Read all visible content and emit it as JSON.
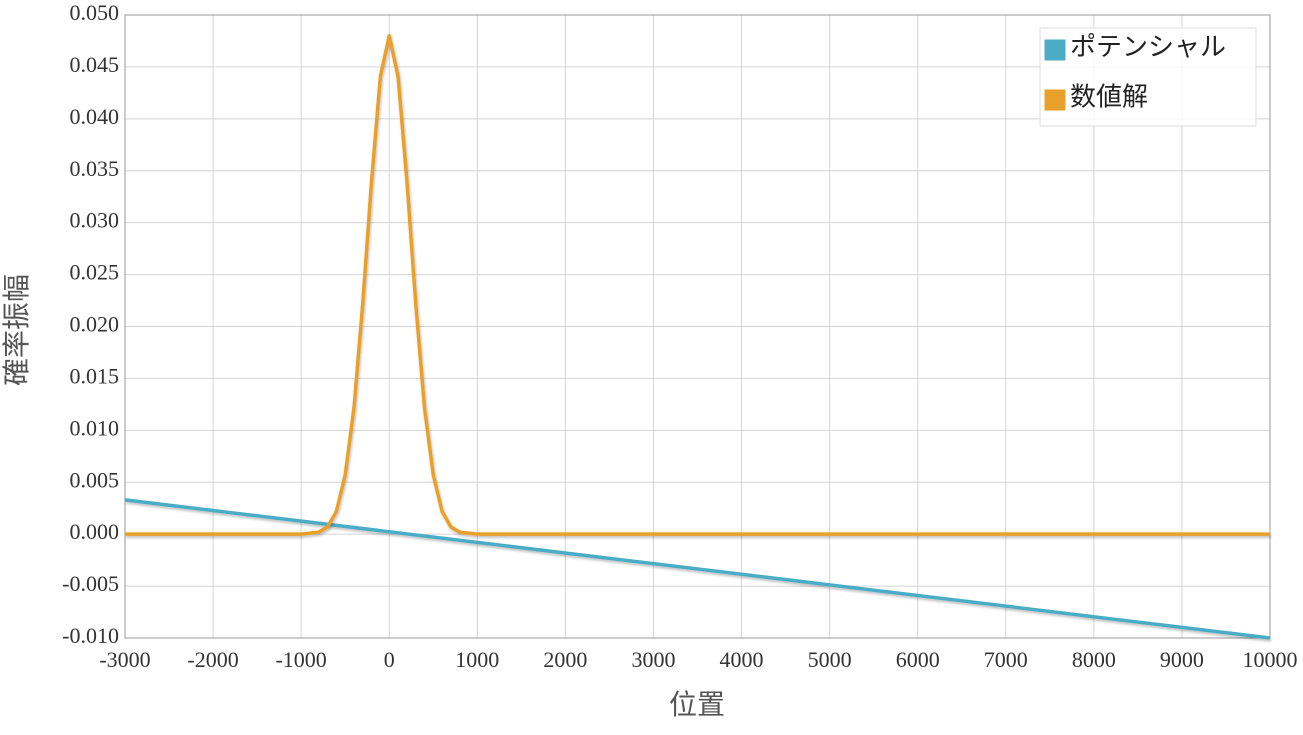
{
  "chart_data": {
    "type": "line",
    "x_label": "位置",
    "y_label": "確率振幅",
    "xlim": [
      -3000,
      10000
    ],
    "xticks": [
      -3000,
      -2000,
      -1000,
      0,
      1000,
      2000,
      3000,
      4000,
      5000,
      6000,
      7000,
      8000,
      9000,
      10000
    ],
    "ylim": [
      -0.01,
      0.05
    ],
    "yticks": [
      {
        "value": -0.01,
        "label": "-0.010"
      },
      {
        "value": -0.005,
        "label": "-0.005"
      },
      {
        "value": 0,
        "label": "0.000"
      },
      {
        "value": 0.005,
        "label": "0.005"
      },
      {
        "value": 0.01,
        "label": "0.010"
      },
      {
        "value": 0.015,
        "label": "0.015"
      },
      {
        "value": 0.02,
        "label": "0.020"
      },
      {
        "value": 0.025,
        "label": "0.025"
      },
      {
        "value": 0.03,
        "label": "0.030"
      },
      {
        "value": 0.035,
        "label": "0.035"
      },
      {
        "value": 0.04,
        "label": "0.040"
      },
      {
        "value": 0.045,
        "label": "0.045"
      },
      {
        "value": 0.05,
        "label": "0.050"
      }
    ],
    "grid": true,
    "legend": "upper right",
    "series": [
      {
        "name": "ポテンシャル",
        "color": "#4bacc6",
        "x": [
          -3000,
          10000
        ],
        "values": [
          0.0033,
          -0.01
        ]
      },
      {
        "name": "数値解",
        "color": "#e8a02a",
        "x": [
          -3000,
          -1000,
          -800,
          -700,
          -600,
          -500,
          -400,
          -300,
          -200,
          -100,
          0,
          100,
          200,
          300,
          400,
          500,
          600,
          700,
          800,
          1000,
          10000
        ],
        "values": [
          0,
          0,
          0.0002,
          0.0007,
          0.0022,
          0.0057,
          0.0122,
          0.0223,
          0.0341,
          0.0441,
          0.048,
          0.0441,
          0.0341,
          0.0223,
          0.0122,
          0.0057,
          0.0022,
          0.0007,
          0.0002,
          0,
          0
        ]
      }
    ]
  }
}
